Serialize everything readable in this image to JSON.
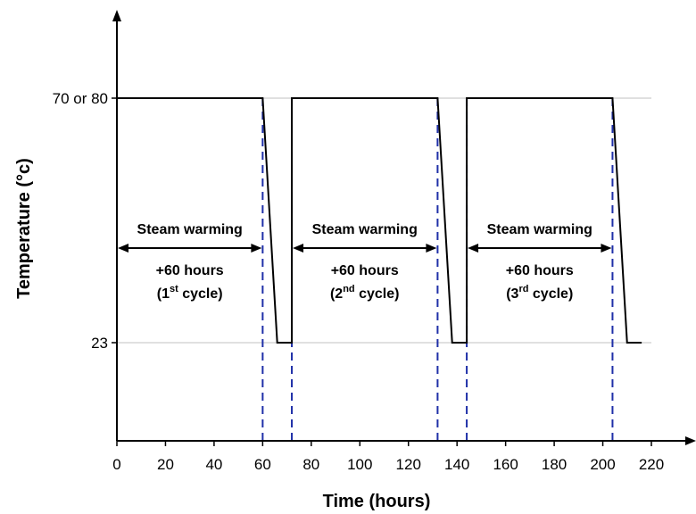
{
  "chart_data": {
    "type": "line",
    "xlabel": "Time (hours)",
    "ylabel": "Temperature (°c)",
    "xlim": [
      0,
      220
    ],
    "x_ticks": [
      0,
      20,
      40,
      60,
      80,
      100,
      120,
      140,
      160,
      180,
      200,
      220
    ],
    "y_ticks": [
      {
        "value": 23,
        "label": "23"
      },
      {
        "value": 75,
        "label": "70 or 80"
      }
    ],
    "grid": "horizontal lines at y ticks",
    "series": [
      {
        "x": [
          0,
          60,
          66,
          72,
          72,
          132,
          138,
          144,
          144,
          204,
          210,
          216
        ],
        "y": [
          75,
          75,
          23,
          23,
          75,
          75,
          23,
          23,
          75,
          75,
          23,
          23
        ]
      }
    ],
    "markers": [
      60,
      72,
      132,
      144,
      204
    ],
    "cycles": [
      {
        "x_start": 0,
        "x_end": 60,
        "label": "Steam warming",
        "duration": "+60 hours",
        "cycle_open": "(1",
        "cycle_sup": "st",
        "cycle_close": " cycle)"
      },
      {
        "x_start": 72,
        "x_end": 132,
        "label": "Steam warming",
        "duration": "+60 hours",
        "cycle_open": "(2",
        "cycle_sup": "nd",
        "cycle_close": " cycle)"
      },
      {
        "x_start": 144,
        "x_end": 204,
        "label": "Steam warming",
        "duration": "+60 hours",
        "cycle_open": "(3",
        "cycle_sup": "rd",
        "cycle_close": " cycle)"
      }
    ],
    "colors": {
      "line": "#000000",
      "marker": "#1f2fa8",
      "grid": "#c0c0c0"
    }
  }
}
